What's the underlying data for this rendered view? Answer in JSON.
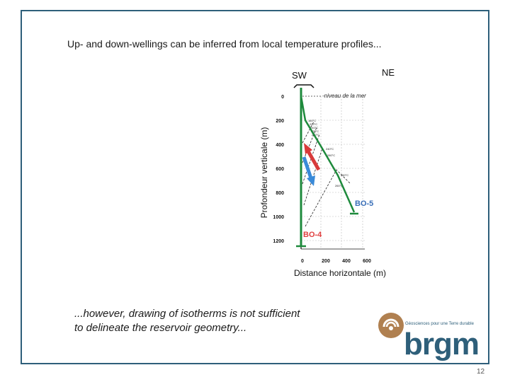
{
  "slide": {
    "title": "Up- and down-wellings can be inferred from local temperature profiles...",
    "note_line1": "...however, drawing of isotherms is not sufficient",
    "note_line2": "to delineate the reservoir geometry...",
    "page_number": "12"
  },
  "figure": {
    "label_sw": "SW",
    "label_ne": "NE",
    "sea_level": "-niveau de la mer",
    "y_axis_label": "Profondeur verticale (m)",
    "x_axis_label": "Distance horizontale (m)",
    "y_ticks": [
      "0",
      "200",
      "400",
      "600",
      "800",
      "1000",
      "1200"
    ],
    "x_ticks": [
      "0",
      "200",
      "400",
      "600"
    ],
    "well_bo5": "BO-5",
    "well_bo4": "BO-4",
    "isotherm_labels": [
      "160°C",
      "200°C",
      "240°C",
      "270°C",
      "280°C",
      "240°C",
      "280°C",
      "250°C",
      "260°C"
    ],
    "colors": {
      "well_trace": "#1e8a3c",
      "upwelling_arrow": "#d83a3a",
      "downwelling_arrow": "#3a8ad8",
      "well_label": "#3a6fb8",
      "bo4_label": "#e04040"
    }
  },
  "logo": {
    "tagline": "Géosciences pour une Terre durable",
    "wordmark": "brgm",
    "colors": {
      "swirl": "#b08050",
      "text": "#2e5f7a"
    }
  }
}
